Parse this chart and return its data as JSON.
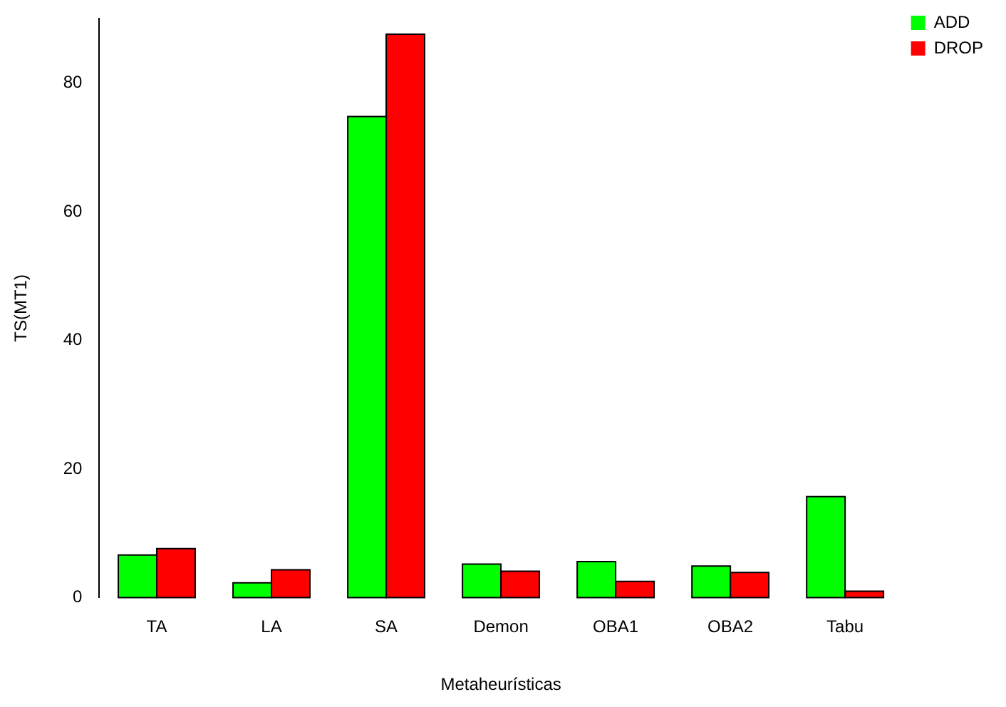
{
  "chart_data": {
    "type": "bar",
    "xlabel": "Metaheurísticas",
    "ylabel": "TS(MT1)",
    "categories": [
      "TA",
      "LA",
      "SA",
      "Demon",
      "OBA1",
      "OBA2",
      "Tabu"
    ],
    "series": [
      {
        "name": "ADD",
        "color": "#00ff00",
        "values": [
          6.6,
          2.3,
          74.8,
          5.2,
          5.6,
          4.9,
          15.7
        ]
      },
      {
        "name": "DROP",
        "color": "#ff0000",
        "values": [
          7.6,
          4.3,
          87.6,
          4.1,
          2.5,
          3.9,
          1.0
        ]
      }
    ],
    "ylim": [
      0,
      90
    ],
    "yticks": [
      0,
      20,
      40,
      60,
      80
    ],
    "grid": false,
    "legend": "top right"
  }
}
